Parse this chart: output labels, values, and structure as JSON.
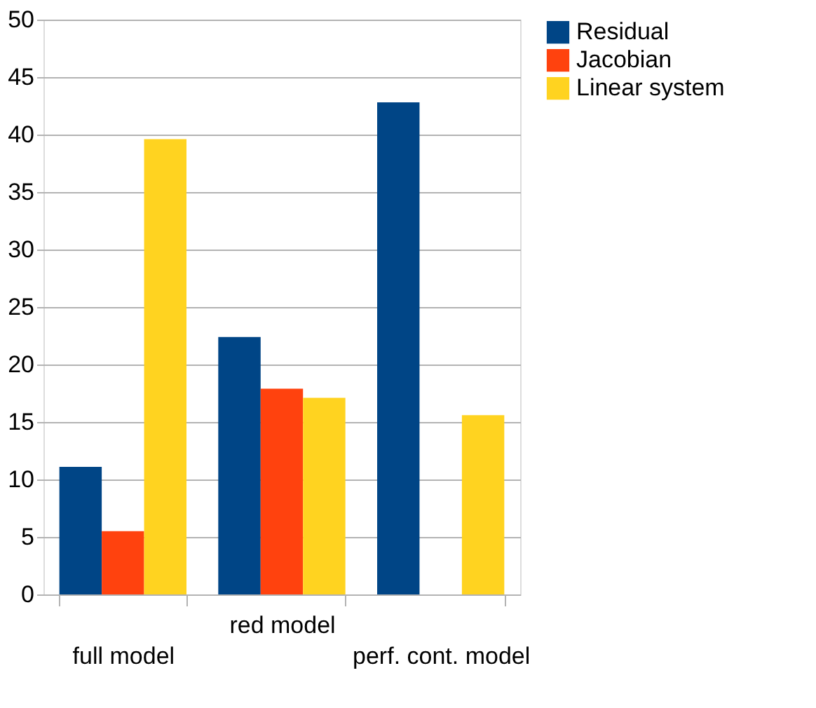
{
  "chart_data": {
    "type": "bar",
    "categories": [
      "full model",
      "red model",
      "perf. cont. model"
    ],
    "series": [
      {
        "name": "Residual",
        "color": "#004586",
        "values": [
          11.1,
          22.4,
          42.8
        ]
      },
      {
        "name": "Jacobian",
        "color": "#ff420e",
        "values": [
          5.5,
          17.9,
          null
        ]
      },
      {
        "name": "Linear system",
        "color": "#ffd320",
        "values": [
          39.6,
          17.1,
          15.6
        ]
      }
    ],
    "ylim": [
      0,
      50
    ],
    "yticks": [
      0,
      5,
      10,
      15,
      20,
      25,
      30,
      35,
      40,
      45,
      50
    ],
    "grid": "y",
    "legend": "right"
  }
}
